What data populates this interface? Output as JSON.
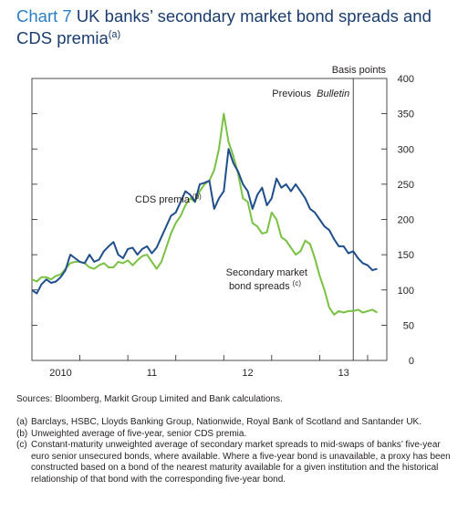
{
  "chart_title": {
    "number": "Chart 7",
    "text": "UK banks’ secondary market bond spreads and CDS premia",
    "note_ref": "(a)"
  },
  "y_axis_label": "Basis points",
  "footer": {
    "sources": "Sources:  Bloomberg, Markit Group Limited and Bank calculations.",
    "notes": [
      {
        "marker": "(a)",
        "text": "Barclays, HSBC, Lloyds Banking Group, Nationwide, Royal Bank of Scotland and Santander UK."
      },
      {
        "marker": "(b)",
        "text": "Unweighted average of five-year, senior CDS premia."
      },
      {
        "marker": "(c)",
        "text": "Constant-maturity unweighted average of secondary market spreads to mid-swaps of banks’ five-year euro senior unsecured bonds, where available.  Where a five-year bond is unavailable, a proxy has been constructed based on a bond of the nearest maturity available for a given institution and the historical relationship of that bond with the corresponding five-year bond."
      }
    ]
  },
  "colors": {
    "cds": "#1f4e8c",
    "bond": "#79c143",
    "axis": "#231f20",
    "title": "#1a3c6e",
    "title_number": "#2a7fc4"
  },
  "chart_data": {
    "type": "line",
    "ylabel": "Basis points",
    "ylim": [
      0,
      400
    ],
    "yticks": [
      0,
      50,
      100,
      150,
      200,
      250,
      300,
      350,
      400
    ],
    "xlim": [
      2009.5,
      2013.2
    ],
    "xticks": [
      2009.5,
      2010,
      2010.5,
      2011,
      2011.5,
      2012,
      2012.5,
      2013
    ],
    "xtick_labels": [
      {
        "at": 2009.8,
        "label": "2010"
      },
      {
        "at": 2010.75,
        "label": "11"
      },
      {
        "at": 2011.75,
        "label": "12"
      },
      {
        "at": 2012.75,
        "label": "13"
      }
    ],
    "grid": false,
    "annotations": [
      {
        "text": "Previous",
        "italic_text": "Bulletin",
        "x": 2012.85,
        "type": "vertical-line"
      },
      {
        "text": "CDS premia",
        "sup": "(b)",
        "series": "cds"
      },
      {
        "text": "Secondary market",
        "text2": "bond spreads",
        "sup": "(c)",
        "series": "bond"
      }
    ],
    "series": [
      {
        "key": "cds",
        "name": "CDS premia",
        "x": [
          2009.5,
          2009.55,
          2009.6,
          2009.65,
          2009.7,
          2009.75,
          2009.8,
          2009.85,
          2009.9,
          2009.95,
          2010.0,
          2010.05,
          2010.1,
          2010.15,
          2010.2,
          2010.25,
          2010.3,
          2010.35,
          2010.4,
          2010.45,
          2010.5,
          2010.55,
          2010.6,
          2010.65,
          2010.7,
          2010.75,
          2010.8,
          2010.85,
          2010.9,
          2010.95,
          2011.0,
          2011.05,
          2011.1,
          2011.15,
          2011.2,
          2011.25,
          2011.3,
          2011.35,
          2011.4,
          2011.45,
          2011.5,
          2011.55,
          2011.6,
          2011.65,
          2011.7,
          2011.75,
          2011.8,
          2011.85,
          2011.9,
          2011.95,
          2012.0,
          2012.05,
          2012.1,
          2012.15,
          2012.2,
          2012.25,
          2012.3,
          2012.35,
          2012.4,
          2012.45,
          2012.5,
          2012.55,
          2012.6,
          2012.65,
          2012.7,
          2012.75,
          2012.8,
          2012.85,
          2012.9,
          2012.95,
          2013.0,
          2013.05,
          2013.1
        ],
        "values": [
          100,
          95,
          108,
          115,
          110,
          112,
          118,
          128,
          150,
          145,
          140,
          138,
          150,
          140,
          143,
          155,
          162,
          168,
          150,
          145,
          158,
          160,
          150,
          158,
          162,
          152,
          160,
          175,
          190,
          205,
          210,
          225,
          240,
          235,
          225,
          250,
          252,
          255,
          215,
          230,
          240,
          300,
          280,
          268,
          250,
          240,
          215,
          235,
          245,
          220,
          230,
          258,
          245,
          250,
          240,
          250,
          240,
          230,
          215,
          210,
          200,
          190,
          185,
          172,
          162,
          162,
          152,
          155,
          145,
          138,
          135,
          128,
          130
        ]
      },
      {
        "key": "bond",
        "name": "Secondary market bond spreads",
        "x": [
          2009.5,
          2009.55,
          2009.6,
          2009.65,
          2009.7,
          2009.75,
          2009.8,
          2009.85,
          2009.9,
          2009.95,
          2010.0,
          2010.05,
          2010.1,
          2010.15,
          2010.2,
          2010.25,
          2010.3,
          2010.35,
          2010.4,
          2010.45,
          2010.5,
          2010.55,
          2010.6,
          2010.65,
          2010.7,
          2010.75,
          2010.8,
          2010.85,
          2010.9,
          2010.95,
          2011.0,
          2011.05,
          2011.1,
          2011.15,
          2011.2,
          2011.25,
          2011.3,
          2011.35,
          2011.4,
          2011.45,
          2011.5,
          2011.55,
          2011.6,
          2011.65,
          2011.7,
          2011.75,
          2011.8,
          2011.85,
          2011.9,
          2011.95,
          2012.0,
          2012.05,
          2012.1,
          2012.15,
          2012.2,
          2012.25,
          2012.3,
          2012.35,
          2012.4,
          2012.45,
          2012.5,
          2012.55,
          2012.6,
          2012.65,
          2012.7,
          2012.75,
          2012.8,
          2012.85,
          2012.9,
          2012.95,
          2013.0,
          2013.05,
          2013.1
        ],
        "values": [
          115,
          112,
          118,
          118,
          115,
          120,
          122,
          130,
          138,
          140,
          140,
          138,
          132,
          130,
          135,
          138,
          132,
          132,
          140,
          138,
          142,
          135,
          142,
          148,
          150,
          140,
          130,
          140,
          160,
          180,
          195,
          205,
          220,
          230,
          225,
          240,
          250,
          255,
          270,
          300,
          350,
          310,
          290,
          265,
          230,
          225,
          195,
          190,
          180,
          182,
          210,
          200,
          175,
          170,
          160,
          150,
          155,
          170,
          165,
          145,
          120,
          100,
          75,
          65,
          70,
          68,
          70,
          70,
          72,
          68,
          70,
          72,
          68
        ]
      }
    ]
  }
}
